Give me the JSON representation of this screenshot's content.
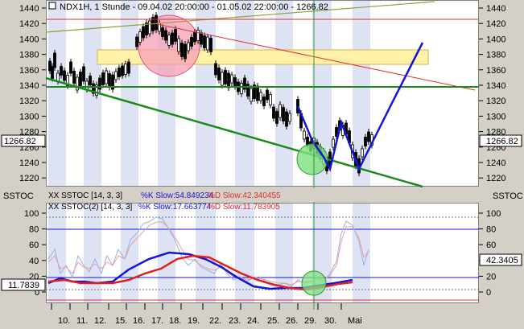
{
  "price_panel": {
    "header": "NDX1H, 1 Stunde - 09.04.02 20:00:00 - 01.05.02 22:00:00 - 1266.82",
    "y_ticks": [
      "1440",
      "1420",
      "1400",
      "1380",
      "1360",
      "1340",
      "1320",
      "1300",
      "1280",
      "1260",
      "1240",
      "1220"
    ],
    "last_value": "1266.82"
  },
  "sstoc_panel": {
    "title_left": "SSTOC",
    "title_right": "SSTOC",
    "legend1": {
      "name": "XX SSTOC [14, 3, 3]",
      "k": "%K Slow:54.849234",
      "d": "%D Slow:42.340455"
    },
    "legend2": {
      "name": "XX SSTOC(2) [14, 3, 3]",
      "k": "%K Slow:17.663774",
      "d": "%D Slow:11.783905"
    },
    "y_ticks": [
      "100",
      "80",
      "60",
      "40",
      "20",
      "0"
    ],
    "left_value": "11.7839",
    "right_value": "42.3405"
  },
  "x_axis": {
    "labels": [
      "10.",
      "11.",
      "12.",
      "15.",
      "16.",
      "17.",
      "18.",
      "19.",
      "22.",
      "23.",
      "24.",
      "25.",
      "26.",
      "29.",
      "30.",
      "Mai"
    ]
  },
  "colors": {
    "panel_bg": "#ffffff",
    "stripe": "#dde3f3",
    "frame": "#d4d0c8",
    "red_line": "#e03030",
    "green_line": "#1a8a1a",
    "blue_line": "#1414d8",
    "highlight_box": "#fff2a8",
    "circle_pink": "#f7a0b8",
    "circle_green": "#7fe07f"
  }
}
